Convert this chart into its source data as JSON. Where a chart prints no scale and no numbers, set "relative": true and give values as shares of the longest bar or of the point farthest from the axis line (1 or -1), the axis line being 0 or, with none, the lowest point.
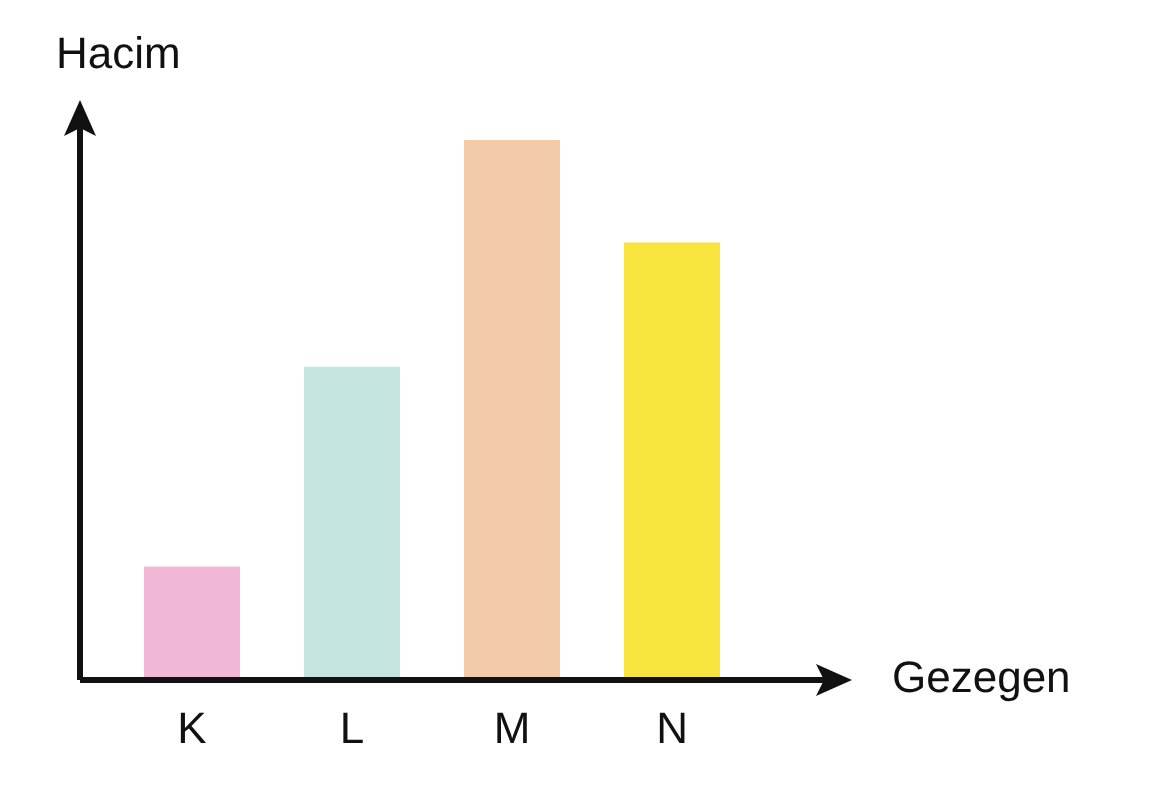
{
  "chart_data": {
    "type": "bar",
    "relative": true,
    "xlabel": "Gezegen",
    "ylabel": "Hacim",
    "categories": [
      "K",
      "L",
      "M",
      "N"
    ],
    "values": [
      0.21,
      0.58,
      1,
      0.81
    ],
    "colors": [
      "#f0b8d4",
      "#c5e6e0",
      "#f3cba8",
      "#f8e43c"
    ],
    "grid": false,
    "legend": false
  }
}
